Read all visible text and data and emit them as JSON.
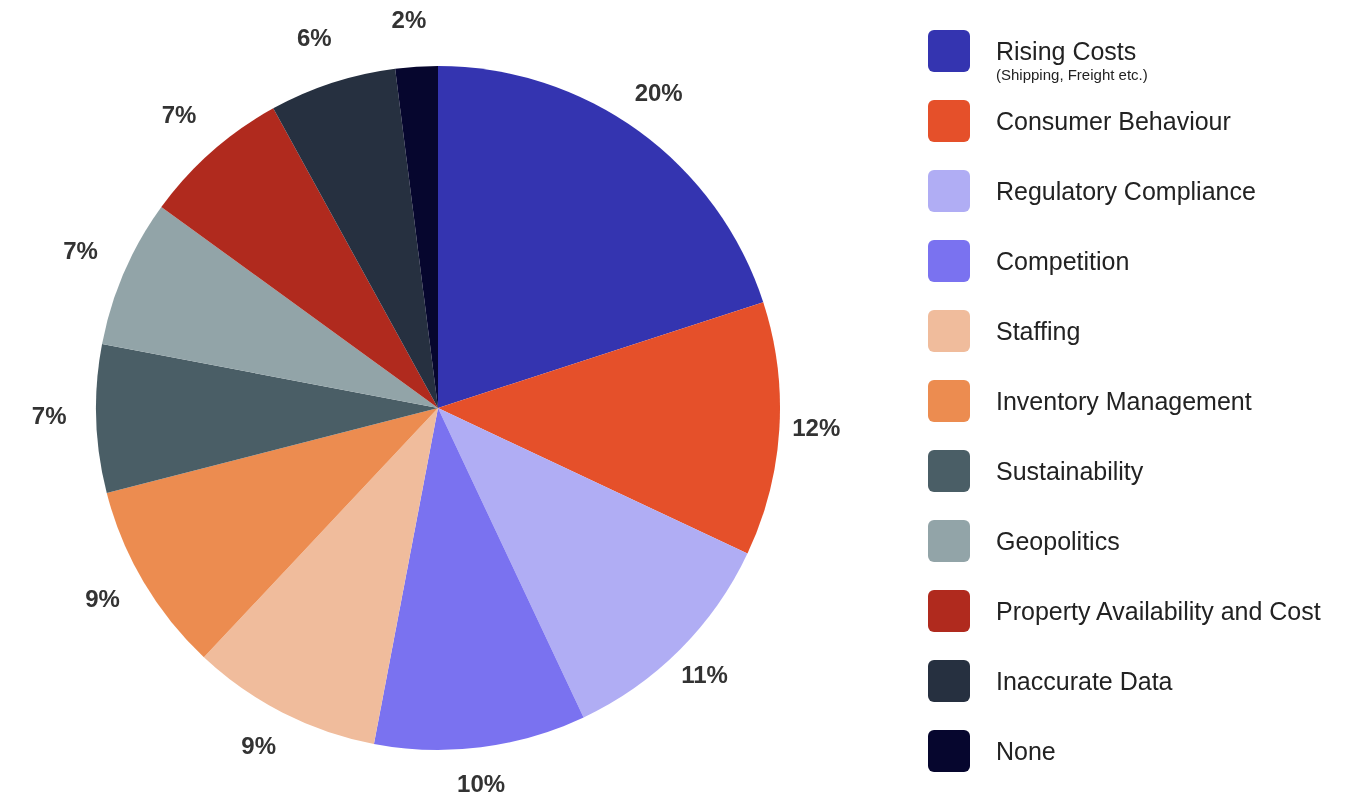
{
  "chart_data": {
    "type": "pie",
    "categories": [
      "Rising Costs\n(Shipping, Freight etc.)",
      "Consumer Behaviour",
      "Regulatory Compliance",
      "Competition",
      "Staffing",
      "Inventory Management",
      "Sustainability",
      "Geopolitics",
      "Property Availability and Cost",
      "Inaccurate Data",
      "None"
    ],
    "values": [
      20,
      12,
      11,
      10,
      9,
      9,
      7,
      7,
      7,
      6,
      2
    ],
    "value_labels": [
      "20%",
      "12%",
      "11%",
      "10%",
      "9%",
      "9%",
      "7%",
      "7%",
      "7%",
      "6%",
      "2%"
    ],
    "colors": [
      "#3434b0",
      "#e5502a",
      "#b0adf4",
      "#7a72f0",
      "#f0bc9c",
      "#ec8c50",
      "#4a5e66",
      "#92a4a8",
      "#b02a1e",
      "#263040",
      "#06062e"
    ],
    "legend": "right"
  }
}
